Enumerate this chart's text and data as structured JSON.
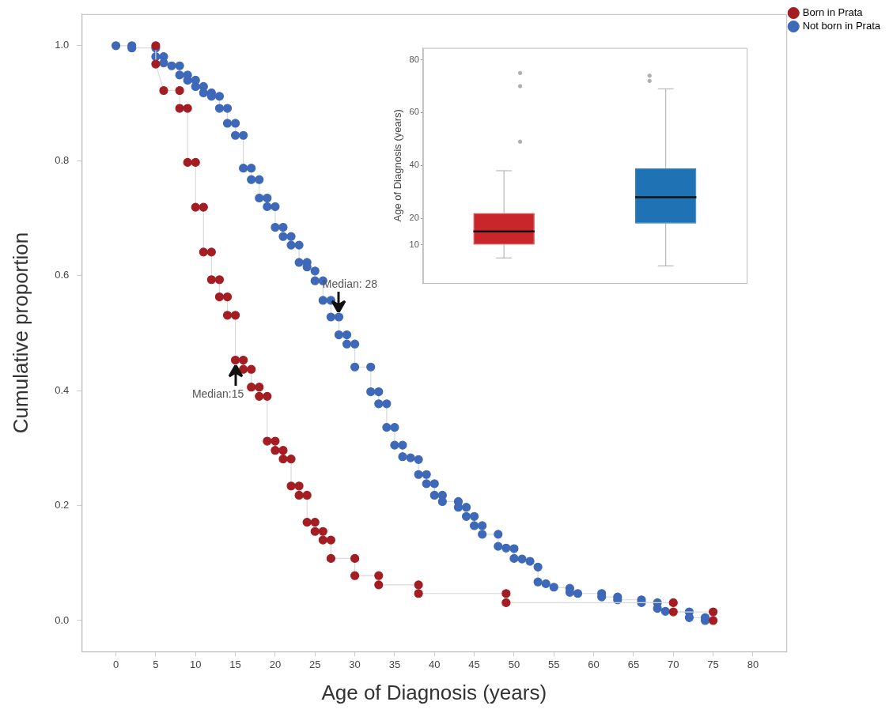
{
  "chart_data": [
    {
      "type": "line",
      "xlabel": "Age of Diagnosis (years)",
      "ylabel": "Cumulative proportion",
      "xlim": [
        -4.3,
        84.2
      ],
      "ylim": [
        -0.054,
        1.055
      ],
      "xticks": [
        0,
        5,
        10,
        15,
        20,
        25,
        30,
        35,
        40,
        45,
        50,
        55,
        60,
        65,
        70,
        75,
        80
      ],
      "yticks": [
        {
          "value": 0,
          "label": "0.0"
        },
        0.2,
        0.4,
        0.6,
        0.8,
        {
          "value": 1,
          "label": "1.0"
        }
      ],
      "legend": "top right",
      "marker": "circle",
      "annotations": [
        {
          "text": "Median: 28",
          "x": 28,
          "y": 0.528
        },
        {
          "text": "Median:15",
          "x": 15,
          "y": 0.453
        }
      ],
      "series": [
        {
          "name": "Born in Prata",
          "color": "#a31d22",
          "x": [
            5,
            5,
            6,
            8,
            8,
            9,
            9,
            10,
            10,
            11,
            11,
            12,
            12,
            13,
            13,
            14,
            14,
            15,
            15,
            16,
            16,
            17,
            17,
            18,
            18,
            19,
            19,
            20,
            20,
            21,
            21,
            22,
            22,
            23,
            23,
            24,
            24,
            25,
            25,
            26,
            26,
            27,
            27,
            30,
            30,
            33,
            33,
            38,
            38,
            49,
            49,
            70,
            70,
            75,
            75
          ],
          "values": [
            1.0,
            0.968,
            0.922,
            0.922,
            0.891,
            0.891,
            0.797,
            0.797,
            0.719,
            0.719,
            0.641,
            0.641,
            0.593,
            0.593,
            0.563,
            0.563,
            0.531,
            0.531,
            0.453,
            0.453,
            0.437,
            0.437,
            0.406,
            0.406,
            0.39,
            0.39,
            0.312,
            0.312,
            0.296,
            0.296,
            0.281,
            0.281,
            0.234,
            0.234,
            0.218,
            0.218,
            0.171,
            0.171,
            0.155,
            0.155,
            0.14,
            0.14,
            0.108,
            0.108,
            0.078,
            0.078,
            0.062,
            0.062,
            0.047,
            0.047,
            0.031,
            0.031,
            0.015,
            0.015,
            0.0
          ]
        },
        {
          "name": "Not born in Prata",
          "color": "#3e68b8",
          "x": [
            0,
            2,
            2,
            5,
            5,
            6,
            6,
            7,
            8,
            8,
            9,
            9,
            10,
            10,
            11,
            11,
            12,
            12,
            13,
            13,
            14,
            14,
            15,
            15,
            16,
            16,
            17,
            17,
            18,
            18,
            19,
            19,
            20,
            20,
            21,
            21,
            22,
            22,
            23,
            23,
            24,
            24,
            25,
            25,
            26,
            26,
            27,
            27,
            28,
            28,
            29,
            29,
            30,
            30,
            32,
            32,
            33,
            33,
            34,
            34,
            35,
            35,
            36,
            36,
            37,
            38,
            38,
            39,
            39,
            40,
            40,
            41,
            41,
            43,
            43,
            44,
            44,
            45,
            45,
            46,
            46,
            48,
            48,
            49,
            50,
            50,
            51,
            52,
            53,
            53,
            54,
            55,
            57,
            57,
            58,
            61,
            61,
            63,
            63,
            66,
            66,
            68,
            68,
            69,
            72,
            72,
            74,
            74
          ],
          "values": [
            1.0,
            1.0,
            0.996,
            0.996,
            0.981,
            0.981,
            0.97,
            0.965,
            0.965,
            0.949,
            0.949,
            0.94,
            0.94,
            0.929,
            0.929,
            0.918,
            0.918,
            0.912,
            0.912,
            0.891,
            0.891,
            0.865,
            0.865,
            0.844,
            0.844,
            0.787,
            0.787,
            0.767,
            0.767,
            0.735,
            0.735,
            0.72,
            0.72,
            0.684,
            0.684,
            0.668,
            0.668,
            0.653,
            0.653,
            0.623,
            0.623,
            0.615,
            0.608,
            0.591,
            0.591,
            0.557,
            0.557,
            0.528,
            0.528,
            0.497,
            0.497,
            0.481,
            0.481,
            0.441,
            0.441,
            0.398,
            0.398,
            0.377,
            0.377,
            0.336,
            0.336,
            0.305,
            0.305,
            0.285,
            0.283,
            0.28,
            0.254,
            0.254,
            0.238,
            0.238,
            0.218,
            0.218,
            0.207,
            0.207,
            0.197,
            0.197,
            0.181,
            0.181,
            0.165,
            0.165,
            0.15,
            0.15,
            0.129,
            0.126,
            0.125,
            0.108,
            0.107,
            0.103,
            0.093,
            0.067,
            0.064,
            0.058,
            0.056,
            0.049,
            0.047,
            0.047,
            0.041,
            0.041,
            0.036,
            0.036,
            0.031,
            0.031,
            0.021,
            0.016,
            0.015,
            0.005,
            0.005,
            0.0
          ]
        }
      ]
    },
    {
      "type": "box",
      "ylabel": "Age of Diagnosis (years)",
      "categories": [
        null,
        null
      ],
      "ylim": [
        -4.5,
        84.5
      ],
      "yticks": [
        10,
        20,
        40,
        60,
        80
      ],
      "tick_labels": "y",
      "colors": [
        "#c8262b",
        "#1f72b4"
      ],
      "boxes": [
        {
          "low": 5,
          "q1": 10,
          "median": 15,
          "q3": 22,
          "high": 38,
          "outliers": [
            49,
            70,
            75
          ]
        },
        {
          "low": 2,
          "q1": 18,
          "median": 28,
          "q3": 39,
          "high": 69,
          "outliers": [
            72,
            74
          ]
        }
      ]
    }
  ]
}
